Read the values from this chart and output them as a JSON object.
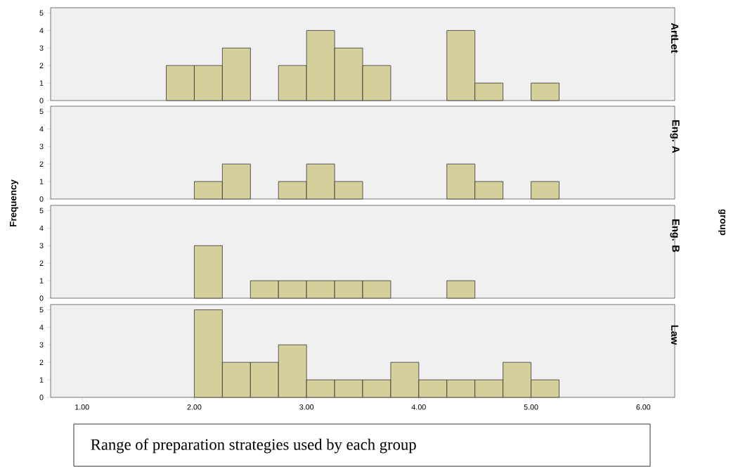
{
  "chart_data": [
    {
      "type": "histogram",
      "title": "ArtLet",
      "bins": [
        1.75,
        2.0,
        2.25,
        2.5,
        2.75,
        3.0,
        3.25,
        3.5,
        3.75,
        4.0,
        4.25,
        4.5,
        4.75,
        5.0,
        5.25
      ],
      "values": [
        2,
        2,
        3,
        0,
        2,
        4,
        3,
        2,
        0,
        0,
        4,
        1,
        0,
        1
      ],
      "color": "#d4cf9b",
      "xlim": [
        0.72,
        6.28
      ],
      "ylim": [
        0,
        5.3
      ],
      "yticks": [
        0,
        1,
        2,
        3,
        4,
        5
      ],
      "tick_labels": "y"
    },
    {
      "type": "histogram",
      "title": "Eng. A",
      "ylabel": "Frequency",
      "y2label": "group",
      "bins": [
        1.75,
        2.0,
        2.25,
        2.5,
        2.75,
        3.0,
        3.25,
        3.5,
        3.75,
        4.0,
        4.25,
        4.5,
        4.75,
        5.0,
        5.25
      ],
      "values": [
        0,
        1,
        2,
        0,
        1,
        2,
        1,
        0,
        0,
        0,
        2,
        1,
        0,
        1
      ],
      "color": "#d4cf9b",
      "xlim": [
        0.72,
        6.28
      ],
      "ylim": [
        0,
        5.3
      ],
      "yticks": [
        0,
        1,
        2,
        3,
        4,
        5
      ],
      "tick_labels": "y"
    },
    {
      "type": "histogram",
      "title": "Eng. B",
      "bins": [
        1.75,
        2.0,
        2.25,
        2.5,
        2.75,
        3.0,
        3.25,
        3.5,
        3.75,
        4.0,
        4.25,
        4.5,
        4.75,
        5.0,
        5.25
      ],
      "values": [
        0,
        3,
        0,
        1,
        1,
        1,
        1,
        1,
        0,
        0,
        1,
        0,
        0,
        0
      ],
      "color": "#d4cf9b",
      "xlim": [
        0.72,
        6.28
      ],
      "ylim": [
        0,
        5.3
      ],
      "yticks": [
        0,
        1,
        2,
        3,
        4,
        5
      ],
      "tick_labels": "y"
    },
    {
      "type": "histogram",
      "title": "Law",
      "bins": [
        1.75,
        2.0,
        2.25,
        2.5,
        2.75,
        3.0,
        3.25,
        3.5,
        3.75,
        4.0,
        4.25,
        4.5,
        4.75,
        5.0,
        5.25
      ],
      "values": [
        0,
        5,
        2,
        2,
        3,
        1,
        1,
        1,
        2,
        1,
        1,
        1,
        2,
        1
      ],
      "color": "#d4cf9b",
      "xlim": [
        0.72,
        6.28
      ],
      "ylim": [
        0,
        5.3
      ],
      "yticks": [
        0,
        1,
        2,
        3,
        4,
        5
      ],
      "xticks": [
        {
          "value": 1,
          "label": "1.00"
        },
        {
          "value": 2,
          "label": "2.00"
        },
        {
          "value": 3,
          "label": "3.00"
        },
        {
          "value": 4,
          "label": "4.00"
        },
        {
          "value": 5,
          "label": "5.00"
        },
        {
          "value": 6,
          "label": "6.00"
        }
      ],
      "annotations": [
        "Range of preparation strategies used by each group"
      ]
    }
  ]
}
